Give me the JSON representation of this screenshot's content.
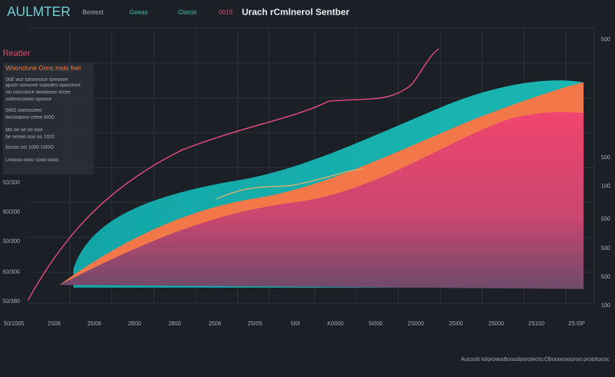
{
  "header": {
    "brand": "AULMTER",
    "nav": [
      "Bestest",
      "Geeas",
      "Gtecte",
      "0015"
    ],
    "title": "Urach rCmlnerol Sentber"
  },
  "panel": {
    "label": "Reatter",
    "heading": "Woonclune Gonc.mslo foel",
    "lines": [
      "00E wor totmenoce torewore",
      "apoor sonoove sopodeo opoconce",
      "sio oonconce wooteeoo tocee",
      "solenecoweo oponce",
      "5I6O ooeooceeo",
      "bocosaoce cetee 8I0O",
      "Mo oe oe oo toot",
      "be omeet ooo oo 1020",
      "bocoo sot 1000 10I0O",
      "Lnoooo oooo sooo oooo"
    ]
  },
  "left_axis": [
    "50/300",
    "60/200",
    "50/300",
    "60/300",
    "50/380"
  ],
  "right_axis": [
    "500",
    "500",
    "100",
    "500",
    "500",
    "500",
    "100"
  ],
  "bottom_axis": [
    "50/1005",
    "2S06",
    "25I06",
    "2B00",
    "2800",
    "2506",
    "25I0S",
    "5I0I",
    "K0000",
    "5I000",
    "2S000",
    "25I00",
    "25000",
    "2S100",
    "2S:I0P"
  ],
  "footer": "Aucoob lotorowodtooudoorotecto:Oboooooooroo:orototucoc"
}
